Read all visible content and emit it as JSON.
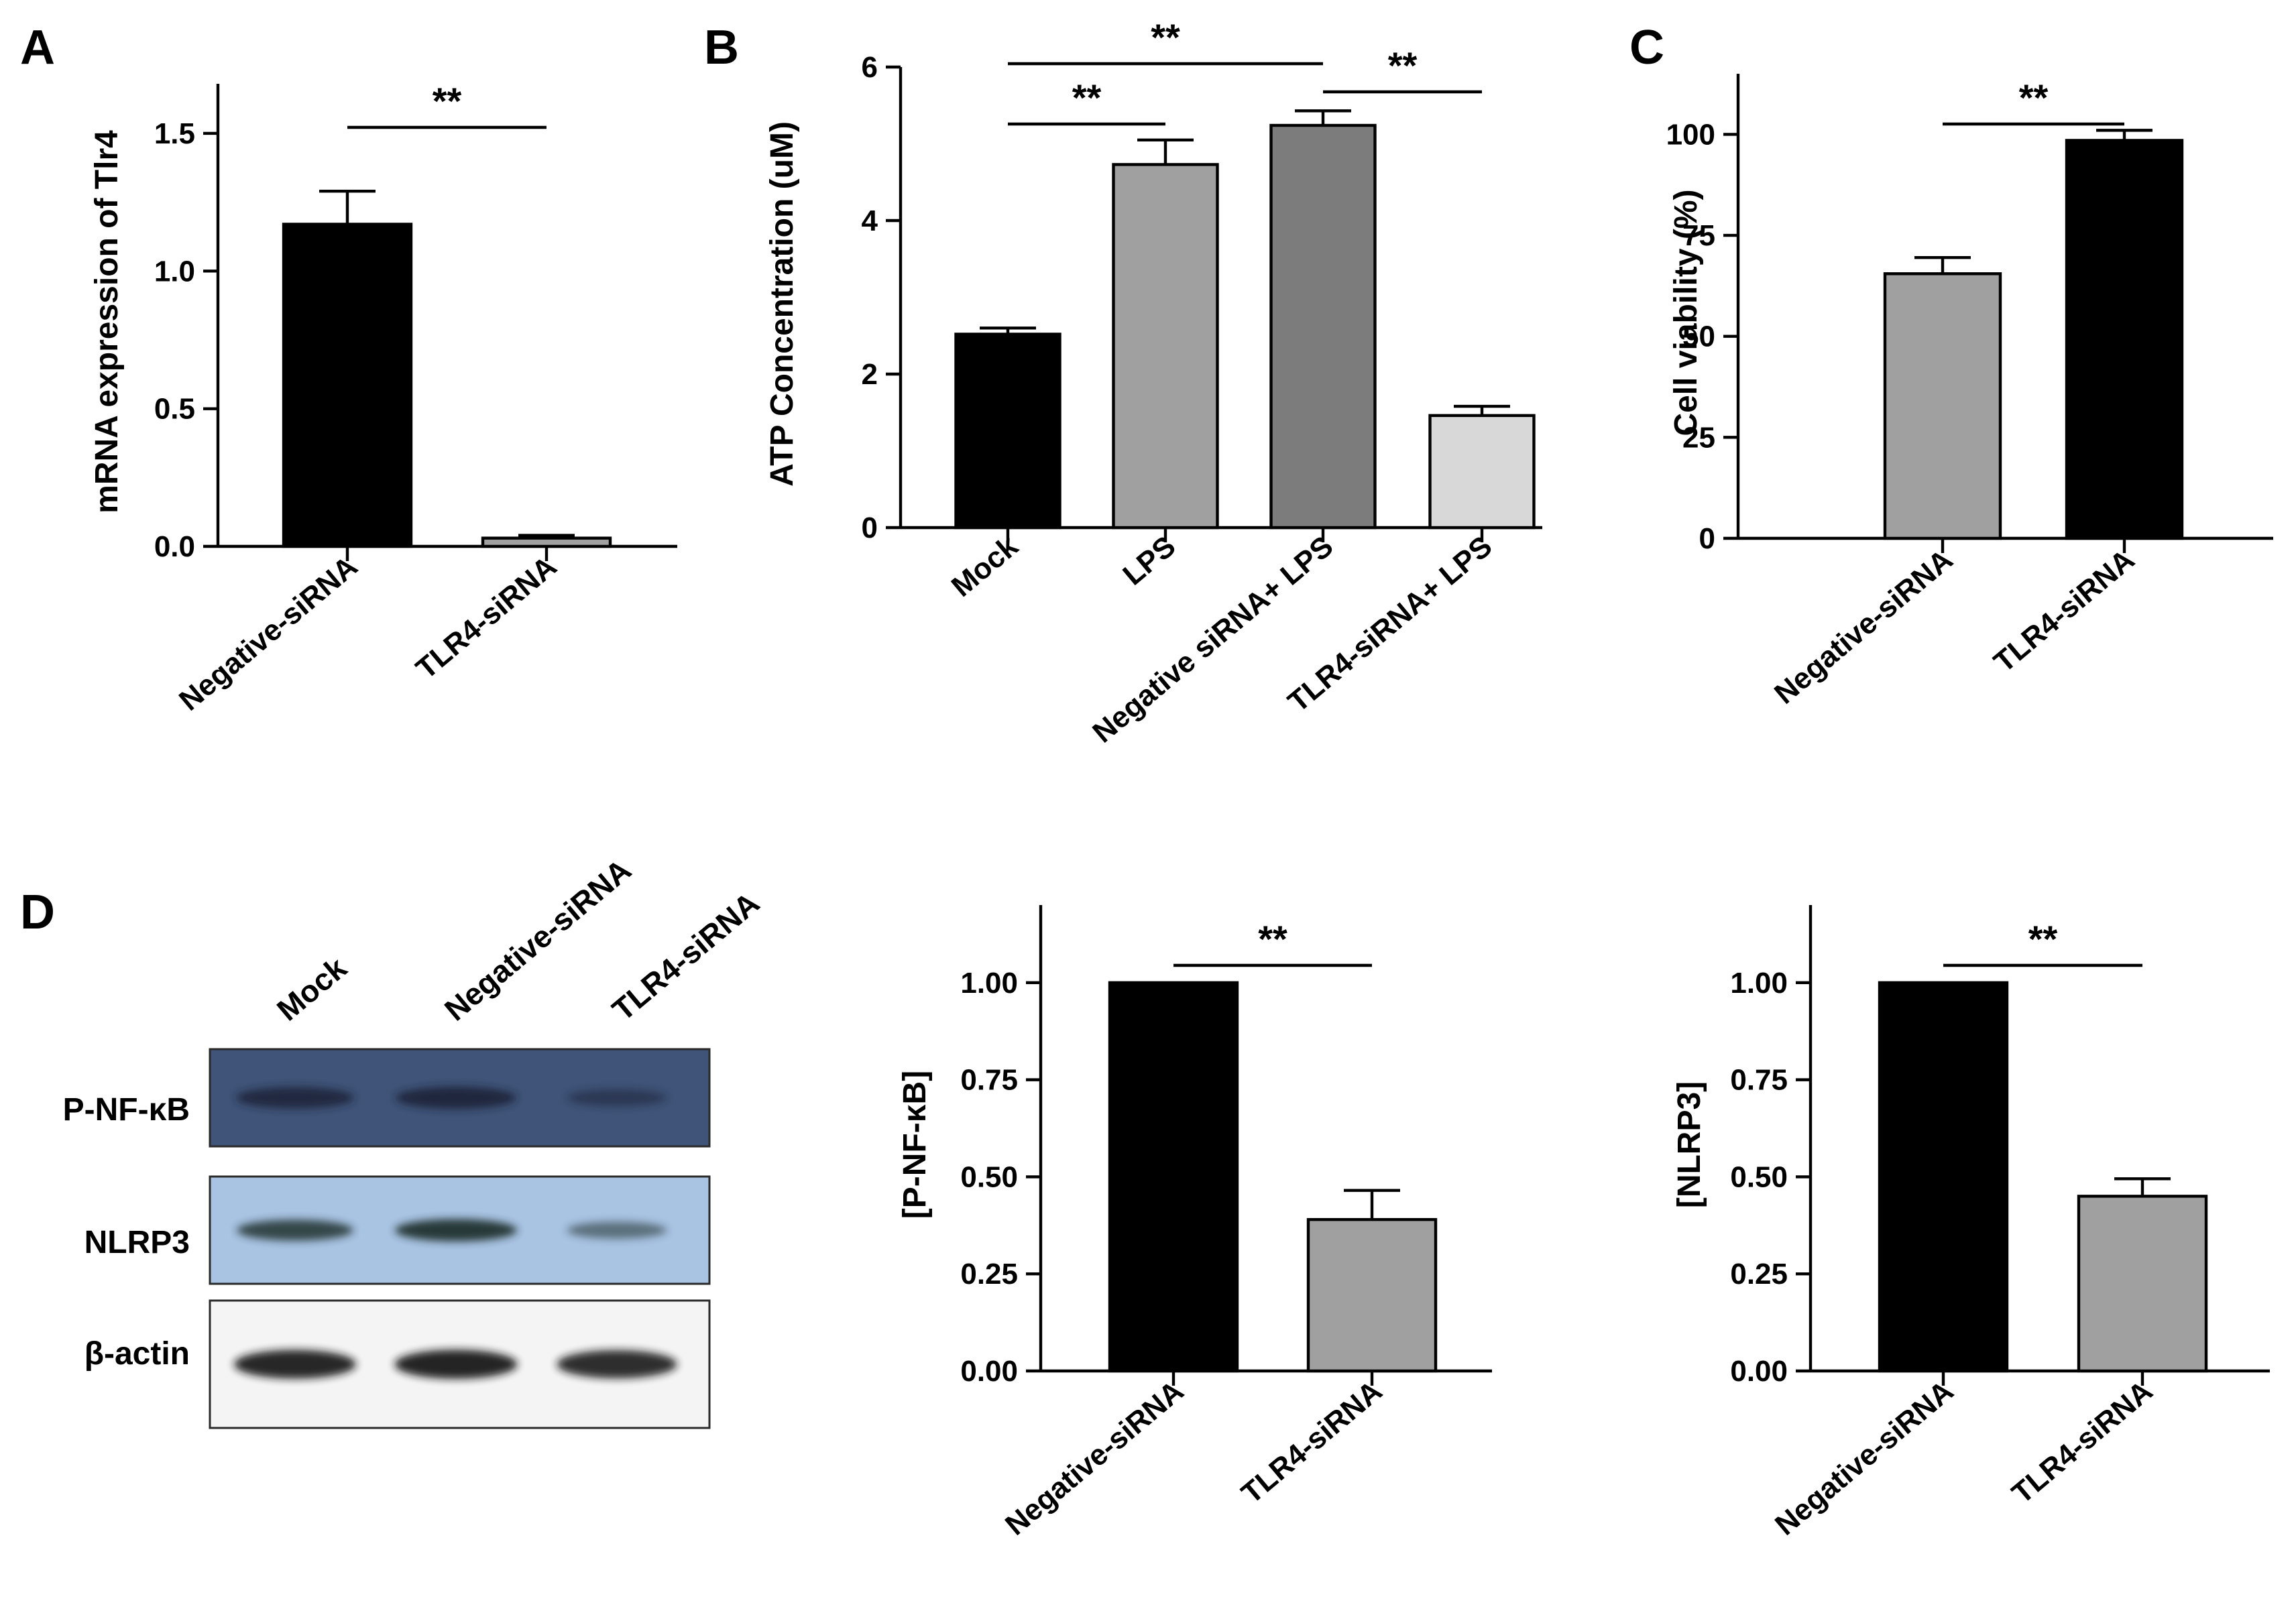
{
  "panel_letters": {
    "a": "A",
    "b": "B",
    "c": "C",
    "d": "D"
  },
  "significance": "**",
  "western_blot": {
    "lanes": [
      "Mock",
      "Negative-siRNA",
      "TLR4-siRNA"
    ],
    "rows": [
      {
        "label": "P-NF-κB",
        "background": "#3f5478",
        "band": "#1a2238",
        "intensities": [
          0.85,
          0.92,
          0.35
        ]
      },
      {
        "label": "NLRP3",
        "background": "#a9c3e3",
        "band": "#1f2d2a",
        "intensities": [
          0.8,
          0.95,
          0.35
        ]
      },
      {
        "label": "β-actin",
        "background": "#f4f4f4",
        "band": "#151515",
        "intensities": [
          0.95,
          0.97,
          0.9
        ]
      }
    ]
  },
  "chart_data": [
    {
      "id": "A",
      "type": "bar",
      "categories": [
        "Negative-siRNA",
        "TLR4-siRNA"
      ],
      "values": [
        1.17,
        0.03
      ],
      "errors": [
        0.12,
        0.01
      ],
      "colors": [
        "#000000",
        "#a0a0a0"
      ],
      "ylabel": "mRNA expression of Tlr4",
      "ylim": [
        0,
        1.5
      ],
      "yticks": [
        "0.0",
        "0.5",
        "1.0",
        "1.5"
      ],
      "ytick_values": [
        0,
        0.5,
        1.0,
        1.5
      ],
      "significance": [
        {
          "from": 0,
          "to": 1,
          "label": "**"
        }
      ]
    },
    {
      "id": "B",
      "type": "bar",
      "categories": [
        "Mock",
        "LPS",
        "Negative siRNA+ LPS",
        "TLR4-siRNA+ LPS"
      ],
      "values": [
        2.52,
        4.73,
        5.24,
        1.46
      ],
      "errors": [
        0.08,
        0.32,
        0.19,
        0.12
      ],
      "colors": [
        "#000000",
        "#a0a0a0",
        "#7c7c7c",
        "#d8d8d8"
      ],
      "ylabel": "ATP Concentration (uM)",
      "ylim": [
        0,
        6
      ],
      "yticks": [
        "0",
        "2",
        "4",
        "6"
      ],
      "ytick_values": [
        0,
        2,
        4,
        6
      ],
      "significance": [
        {
          "from": 0,
          "to": 1,
          "label": "**"
        },
        {
          "from": 0,
          "to": 2,
          "label": "**"
        },
        {
          "from": 2,
          "to": 3,
          "label": "**"
        }
      ]
    },
    {
      "id": "C",
      "type": "bar",
      "categories": [
        "Negative-siRNA",
        "TLR4-siRNA"
      ],
      "values": [
        65.5,
        98.5
      ],
      "errors": [
        4.0,
        2.5
      ],
      "colors": [
        "#a0a0a0",
        "#000000"
      ],
      "ylabel": "Cell viability (%)",
      "ylim": [
        0,
        100
      ],
      "yticks": [
        "0",
        "25",
        "50",
        "75",
        "100"
      ],
      "ytick_values": [
        0,
        25,
        50,
        75,
        100
      ],
      "significance": [
        {
          "from": 0,
          "to": 1,
          "label": "**"
        }
      ]
    },
    {
      "id": "D-PNFkB",
      "type": "bar",
      "categories": [
        "Negative-siRNA",
        "TLR4-siRNA"
      ],
      "values": [
        1.0,
        0.39
      ],
      "errors": [
        0,
        0.075
      ],
      "colors": [
        "#000000",
        "#a0a0a0"
      ],
      "ylabel": "[P-NF-κB]",
      "ylim": [
        0,
        1.0
      ],
      "yticks": [
        "0.00",
        "0.25",
        "0.50",
        "0.75",
        "1.00"
      ],
      "ytick_values": [
        0,
        0.25,
        0.5,
        0.75,
        1.0
      ],
      "significance": [
        {
          "from": 0,
          "to": 1,
          "label": "**"
        }
      ]
    },
    {
      "id": "D-NLRP3",
      "type": "bar",
      "categories": [
        "Negative-siRNA",
        "TLR4-siRNA"
      ],
      "values": [
        1.0,
        0.45
      ],
      "errors": [
        0,
        0.045
      ],
      "colors": [
        "#000000",
        "#a0a0a0"
      ],
      "ylabel": "[NLRP3]",
      "ylim": [
        0,
        1.0
      ],
      "yticks": [
        "0.00",
        "0.25",
        "0.50",
        "0.75",
        "1.00"
      ],
      "ytick_values": [
        0,
        0.25,
        0.5,
        0.75,
        1.0
      ],
      "significance": [
        {
          "from": 0,
          "to": 1,
          "label": "**"
        }
      ]
    }
  ]
}
